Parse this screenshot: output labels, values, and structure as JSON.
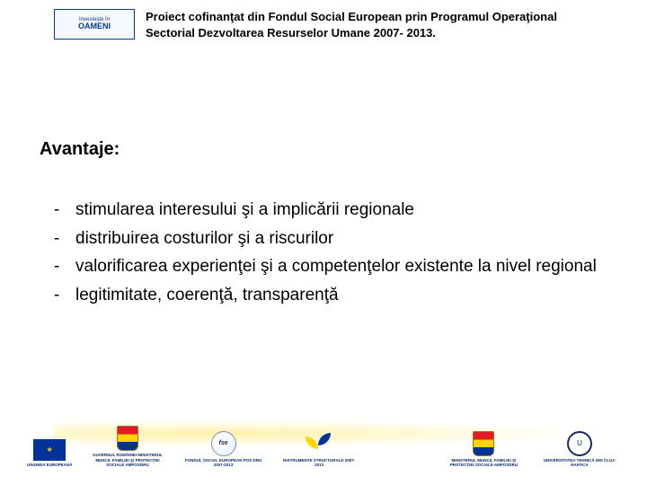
{
  "header": {
    "logo_line1": "Investeşte în",
    "logo_line2": "OAMENI",
    "text": "Proiect cofinanţat din Fondul Social European prin Programul Operaţional Sectorial Dezvoltarea Resurselor Umane 2007- 2013."
  },
  "title": "Avantaje:",
  "bullets": [
    "stimularea interesului şi a implicării regionale",
    "distribuirea costurilor şi a riscurilor",
    "valorificarea experienţei şi a competenţelor existente la nivel regional",
    "legitimitate, coerenţă, transparenţă"
  ],
  "footer": {
    "items": [
      {
        "caption": "UNIUNEA EUROPEANĂ"
      },
      {
        "caption": "GUVERNUL ROMÂNIEI\nMINISTERUL MUNCII, FAMILIEI ŞI PROTECŢIEI SOCIALE\nAMPOSDRU"
      },
      {
        "caption": "FONDUL SOCIAL EUROPEAN POS DRU\n2007-2013"
      },
      {
        "caption": "INSTRUMENTE STRUCTURALE\n2007-2013"
      },
      {
        "caption": "MINISTERUL MUNCII, FAMILIEI ŞI PROTECŢIEI SOCIALE\nAMPOSDRU"
      },
      {
        "caption": "UNIVERSITATEA TEHNICĂ DIN\nCLUJ-NAPOCA"
      }
    ]
  }
}
